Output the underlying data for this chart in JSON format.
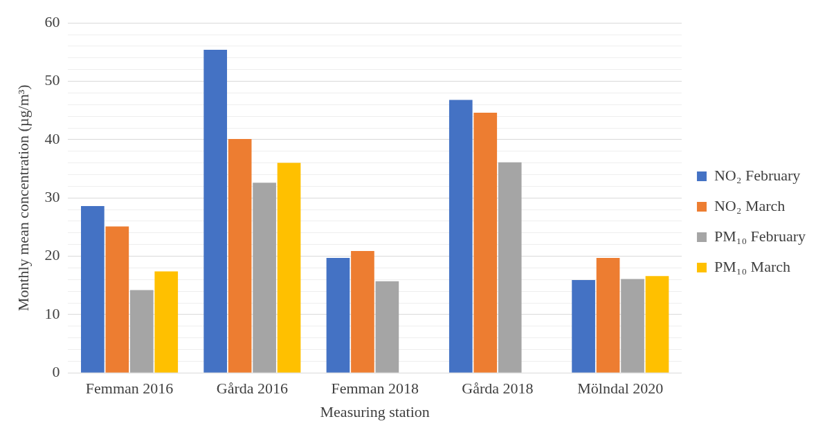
{
  "chart_data": {
    "type": "bar",
    "xlabel": "Measuring station",
    "ylabel": "Monthly mean concentration (µg/m³)",
    "categories": [
      "Femman 2016",
      "Gårda 2016",
      "Femman 2018",
      "Gårda 2018",
      "Mölndal 2020"
    ],
    "series": [
      {
        "name": "NO₂ February",
        "color": "#4472c4",
        "values": [
          28.6,
          55.4,
          19.7,
          46.8,
          15.9
        ]
      },
      {
        "name": "NO₂ March",
        "color": "#ed7d31",
        "values": [
          25.1,
          40.1,
          20.9,
          44.6,
          19.7
        ]
      },
      {
        "name": "PM₁₀ February",
        "color": "#a5a5a5",
        "values": [
          14.2,
          32.6,
          15.7,
          36.1,
          16.1
        ]
      },
      {
        "name": "PM₁₀ March",
        "color": "#ffc000",
        "values": [
          17.4,
          36.0,
          null,
          null,
          16.6
        ]
      }
    ],
    "ylim": [
      0,
      60
    ],
    "yticks": [
      0,
      {
        "value": 2,
        "label": null
      },
      {
        "value": 4,
        "label": null
      },
      {
        "value": 6,
        "label": null
      },
      {
        "value": 8,
        "label": null
      },
      10,
      {
        "value": 12,
        "label": null
      },
      {
        "value": 14,
        "label": null
      },
      {
        "value": 16,
        "label": null
      },
      {
        "value": 18,
        "label": null
      },
      20,
      {
        "value": 22,
        "label": null
      },
      {
        "value": 24,
        "label": null
      },
      {
        "value": 26,
        "label": null
      },
      {
        "value": 28,
        "label": null
      },
      30,
      {
        "value": 32,
        "label": null
      },
      {
        "value": 34,
        "label": null
      },
      {
        "value": 36,
        "label": null
      },
      {
        "value": 38,
        "label": null
      },
      40,
      {
        "value": 42,
        "label": null
      },
      {
        "value": 44,
        "label": null
      },
      {
        "value": 46,
        "label": null
      },
      {
        "value": 48,
        "label": null
      },
      50,
      {
        "value": 52,
        "label": null
      },
      {
        "value": 54,
        "label": null
      },
      {
        "value": 56,
        "label": null
      },
      {
        "value": 58,
        "label": null
      },
      60
    ],
    "grid": "y",
    "legend": "right"
  }
}
